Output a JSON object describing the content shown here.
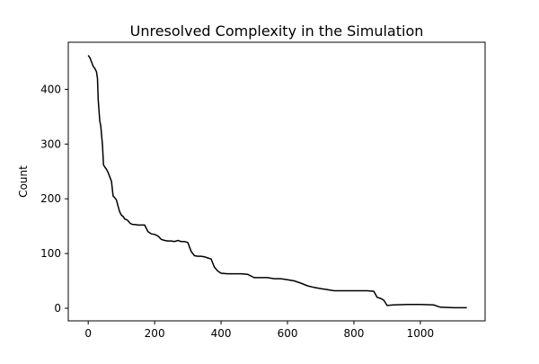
{
  "chart_data": {
    "type": "line",
    "title": "Unresolved Complexity in the Simulation",
    "xlabel": "",
    "ylabel": "Count",
    "xlim": [
      -60,
      1195
    ],
    "ylim": [
      -23,
      486
    ],
    "xticks": [
      0,
      200,
      400,
      600,
      800,
      1000
    ],
    "yticks": [
      0,
      100,
      200,
      300,
      400
    ],
    "grid": false,
    "line_color": "#000000",
    "series": [
      {
        "x": [
          0,
          5,
          10,
          15,
          20,
          25,
          28,
          30,
          32,
          35,
          38,
          40,
          43,
          46,
          50,
          55,
          60,
          65,
          70,
          75,
          80,
          85,
          90,
          95,
          100,
          105,
          110,
          115,
          120,
          125,
          130,
          135,
          140,
          150,
          160,
          170,
          180,
          190,
          200,
          210,
          220,
          230,
          240,
          250,
          260,
          270,
          280,
          290,
          300,
          310,
          320,
          330,
          340,
          350,
          360,
          370,
          380,
          390,
          400,
          420,
          440,
          460,
          480,
          500,
          520,
          540,
          560,
          580,
          600,
          620,
          640,
          660,
          680,
          700,
          720,
          740,
          760,
          780,
          800,
          820,
          840,
          860,
          870,
          880,
          890,
          900,
          920,
          960,
          1000,
          1040,
          1060,
          1100,
          1140
        ],
        "y": [
          462,
          458,
          450,
          442,
          438,
          432,
          420,
          382,
          365,
          342,
          333,
          318,
          298,
          262,
          258,
          254,
          248,
          240,
          232,
          205,
          202,
          198,
          186,
          176,
          170,
          168,
          163,
          162,
          160,
          156,
          154,
          153,
          153,
          152,
          152,
          152,
          140,
          136,
          135,
          132,
          126,
          124,
          123,
          123,
          122,
          124,
          122,
          122,
          120,
          104,
          96,
          95,
          95,
          94,
          92,
          90,
          75,
          68,
          64,
          63,
          63,
          63,
          62,
          56,
          56,
          56,
          54,
          54,
          52,
          50,
          46,
          41,
          38,
          36,
          34,
          32,
          32,
          32,
          32,
          32,
          32,
          31,
          20,
          18,
          15,
          5,
          6,
          7,
          7,
          6,
          2,
          1,
          1
        ]
      }
    ]
  }
}
